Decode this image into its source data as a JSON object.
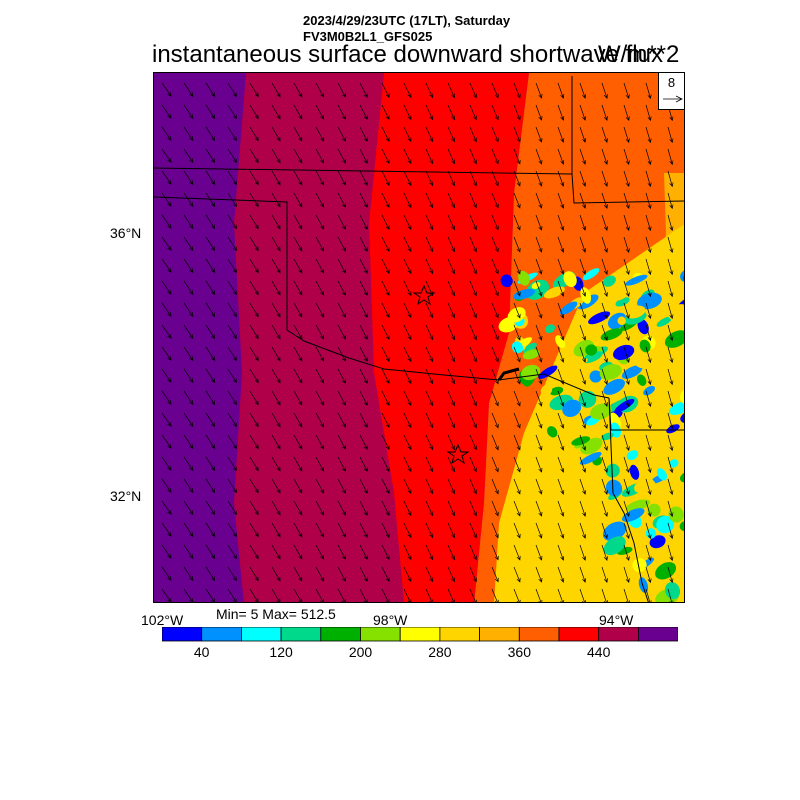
{
  "header": {
    "line1": "2023/4/29/23UTC (17LT), Saturday",
    "line2": "FV3M0B2L1_GFS025"
  },
  "title": {
    "main": "instantaneous surface downward shortwave flux",
    "units": "W/m**2"
  },
  "reference_vector": {
    "label": "8"
  },
  "axes": {
    "lat_labels": [
      "36°N",
      "32°N"
    ],
    "lon_labels": [
      "102°W",
      "98°W",
      "94°W"
    ]
  },
  "stats": {
    "text": "Min= 5 Max= 512.5"
  },
  "colorbar": {
    "colors": [
      "#0000ff",
      "#0091ff",
      "#00ffff",
      "#00d98c",
      "#00b000",
      "#86e000",
      "#ffff00",
      "#ffd500",
      "#ffb000",
      "#ff5f00",
      "#ff0000",
      "#b0004a",
      "#6a0090"
    ],
    "tick_labels": [
      "40",
      "120",
      "200",
      "280",
      "360",
      "440"
    ]
  },
  "chart_data": {
    "type": "heatmap",
    "title": "instantaneous surface downward shortwave flux",
    "units": "W/m**2",
    "valid_time": "2023/4/29/23UTC (17LT), Saturday",
    "model": "FV3M0B2L1_GFS025",
    "min": 5,
    "max": 512.5,
    "levels": [
      40,
      80,
      120,
      160,
      200,
      240,
      280,
      320,
      360,
      400,
      440,
      480
    ],
    "overlay": "surface wind vectors (mostly from the northwest)",
    "latitude_labels": [
      "36°N",
      "32°N"
    ],
    "longitude_labels": [
      "102°W",
      "98°W",
      "94°W"
    ]
  }
}
